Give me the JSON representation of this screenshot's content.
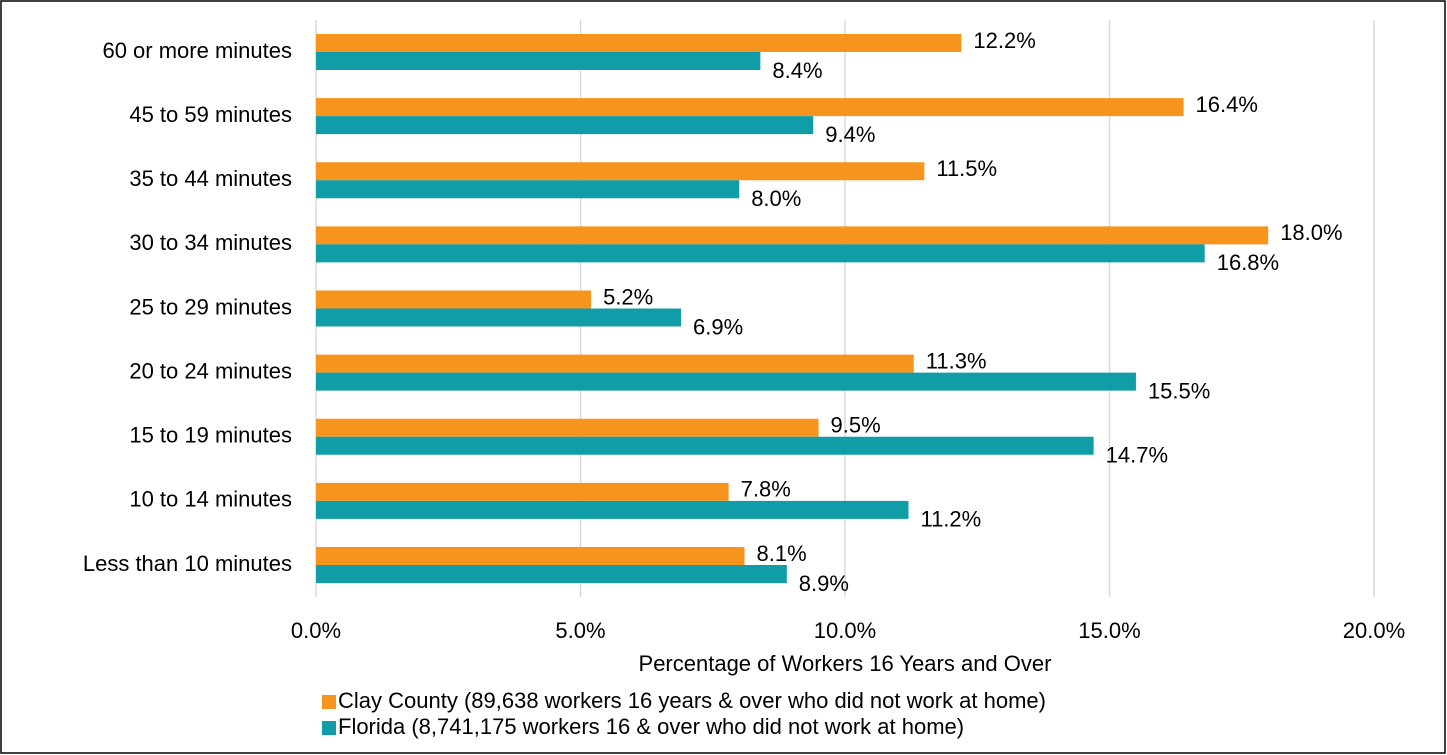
{
  "chart_data": {
    "type": "barh",
    "categories": [
      "60 or more minutes",
      "45 to 59 minutes",
      "35 to 44 minutes",
      "30 to 34 minutes",
      "25 to 29 minutes",
      "20 to 24 minutes",
      "15 to 19 minutes",
      "10 to 14 minutes",
      "Less than 10 minutes"
    ],
    "series": [
      {
        "name": "Clay County (89,638 workers 16 years & over who did not work at home)",
        "color": "#F7941D",
        "values": [
          12.2,
          16.4,
          11.5,
          18.0,
          5.2,
          11.3,
          9.5,
          7.8,
          8.1
        ],
        "value_labels": [
          "12.2%",
          "16.4%",
          "11.5%",
          "18.0%",
          "5.2%",
          "11.3%",
          "9.5%",
          "7.8%",
          "8.1%"
        ]
      },
      {
        "name": "Florida (8,741,175 workers 16 & over who did not work at home)",
        "color": "#119DA8",
        "values": [
          8.4,
          9.4,
          8.0,
          16.8,
          6.9,
          15.5,
          14.7,
          11.2,
          8.9
        ],
        "value_labels": [
          "8.4%",
          "9.4%",
          "8.0%",
          "16.8%",
          "6.9%",
          "15.5%",
          "14.7%",
          "11.2%",
          "8.9%"
        ]
      }
    ],
    "x_label": "Percentage of Workers 16 Years and Over",
    "xlim": [
      0,
      20
    ],
    "xticks": [
      {
        "value": 0,
        "label": "0.0%"
      },
      {
        "value": 5,
        "label": "5.0%"
      },
      {
        "value": 10,
        "label": "10.0%"
      },
      {
        "value": 15,
        "label": "15.0%"
      },
      {
        "value": 20,
        "label": "20.0%"
      }
    ],
    "grid": true,
    "legend": "bottom"
  }
}
